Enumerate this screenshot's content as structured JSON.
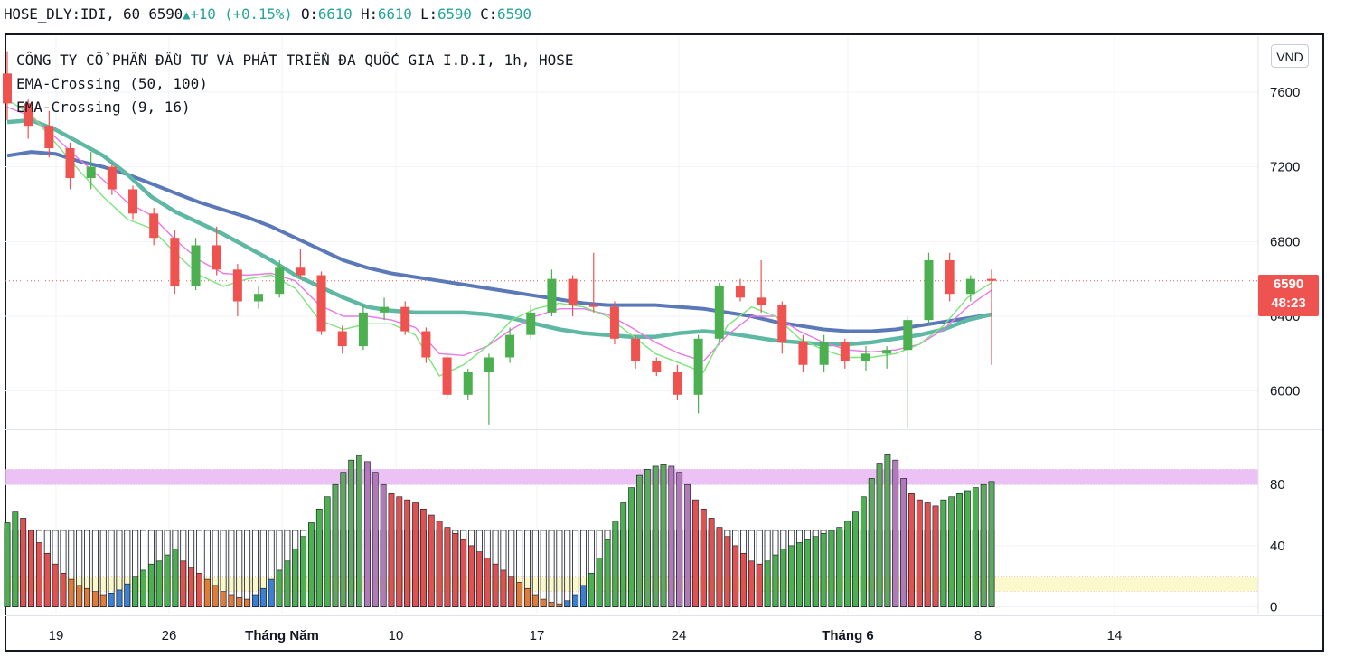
{
  "header": {
    "symbol": "HOSE_DLY:IDI, 60",
    "last": "6590",
    "arrow": "▲",
    "change": "+10",
    "change_pct": "(+0.15%)",
    "o_label": "O:",
    "o_value": "6610",
    "h_label": "H:",
    "h_value": "6610",
    "l_label": "L:",
    "l_value": "6590",
    "c_label": "C:",
    "c_value": "6590"
  },
  "legend": {
    "title": "CÔNG TY CỔ PHẦN ĐẦU TƯ VÀ PHÁT TRIỂN ĐA QUỐC GIA I.D.I, 1h, HOSE",
    "line2": "EMA-Crossing (50, 100)",
    "line3": "EMA-Crossing (9, 16)"
  },
  "unit_button": "VND",
  "price_tag": {
    "price": "6590",
    "countdown": "48:23"
  },
  "colors": {
    "up": "#26a69a",
    "candle_up": "#4caf50",
    "candle_down": "#ef5350",
    "ema50": "#5fb8a3",
    "ema100": "#5b79b8",
    "ema9": "#7de37d",
    "ema16": "#e879e8",
    "osc_over_band": "#e9b8f5",
    "osc_under_band": "#fbf7c4"
  },
  "chart_data": [
    {
      "type": "line",
      "subtype": "candlestick",
      "y_ticks": [
        "7600",
        "7200",
        "6800",
        "6400",
        "6000"
      ],
      "ylim": [
        5800,
        7900
      ],
      "x_ticks": [
        "19",
        "26",
        "Tháng Năm",
        "10",
        "17",
        "24",
        "Tháng 6",
        "8",
        "14"
      ],
      "last_price": 6590,
      "series": [
        {
          "name": "EMA-Crossing (50, 100)",
          "lines": [
            {
              "id": "ema50",
              "values": [
                7440,
                7450,
                7400,
                7330,
                7260,
                7160,
                7040,
                6960,
                6900,
                6840,
                6770,
                6700,
                6620,
                6560,
                6500,
                6450,
                6430,
                6420,
                6420,
                6420,
                6410,
                6390,
                6360,
                6330,
                6310,
                6300,
                6290,
                6290,
                6310,
                6320,
                6310,
                6290,
                6270,
                6260,
                6250,
                6250,
                6260,
                6280,
                6300,
                6330,
                6380,
                6410
              ]
            },
            {
              "id": "ema100",
              "values": [
                7260,
                7280,
                7270,
                7230,
                7200,
                7160,
                7110,
                7060,
                7010,
                6970,
                6930,
                6880,
                6820,
                6760,
                6700,
                6660,
                6630,
                6610,
                6590,
                6570,
                6550,
                6530,
                6510,
                6490,
                6470,
                6460,
                6460,
                6460,
                6450,
                6440,
                6420,
                6400,
                6370,
                6350,
                6330,
                6320,
                6320,
                6330,
                6350,
                6370,
                6390,
                6410
              ]
            }
          ]
        },
        {
          "name": "EMA-Crossing (9, 16)",
          "lines": [
            {
              "id": "ema9",
              "values": [
                7560,
                7480,
                7330,
                7180,
                7040,
                6920,
                6870,
                6740,
                6620,
                6560,
                6600,
                6620,
                6550,
                6380,
                6330,
                6360,
                6360,
                6300,
                6080,
                6140,
                6240,
                6380,
                6440,
                6470,
                6450,
                6400,
                6300,
                6200,
                6150,
                6100,
                6350,
                6450,
                6400,
                6280,
                6220,
                6180,
                6180,
                6200,
                6250,
                6350,
                6500,
                6580
              ]
            },
            {
              "id": "ema16",
              "values": [
                7520,
                7470,
                7360,
                7240,
                7130,
                7010,
                6940,
                6810,
                6700,
                6630,
                6620,
                6630,
                6590,
                6460,
                6400,
                6400,
                6380,
                6340,
                6200,
                6190,
                6240,
                6330,
                6400,
                6440,
                6440,
                6410,
                6340,
                6260,
                6200,
                6160,
                6300,
                6400,
                6400,
                6320,
                6260,
                6220,
                6210,
                6220,
                6250,
                6330,
                6450,
                6540
              ]
            }
          ]
        }
      ],
      "candles": [
        [
          7700,
          7820,
          7450,
          7540
        ],
        [
          7540,
          7560,
          7350,
          7420
        ],
        [
          7420,
          7500,
          7250,
          7300
        ],
        [
          7300,
          7330,
          7080,
          7140
        ],
        [
          7140,
          7280,
          7080,
          7200
        ],
        [
          7200,
          7220,
          7050,
          7080
        ],
        [
          7080,
          7100,
          6920,
          6950
        ],
        [
          6950,
          6980,
          6780,
          6820
        ],
        [
          6820,
          6860,
          6520,
          6560
        ],
        [
          6560,
          6820,
          6540,
          6780
        ],
        [
          6780,
          6880,
          6620,
          6650
        ],
        [
          6650,
          6680,
          6400,
          6480
        ],
        [
          6480,
          6560,
          6440,
          6520
        ],
        [
          6520,
          6700,
          6500,
          6660
        ],
        [
          6660,
          6760,
          6600,
          6620
        ],
        [
          6620,
          6640,
          6300,
          6320
        ],
        [
          6320,
          6350,
          6200,
          6240
        ],
        [
          6240,
          6460,
          6220,
          6420
        ],
        [
          6420,
          6500,
          6380,
          6450
        ],
        [
          6450,
          6480,
          6300,
          6320
        ],
        [
          6320,
          6340,
          6150,
          6180
        ],
        [
          6180,
          6200,
          5960,
          5980
        ],
        [
          5980,
          6120,
          5950,
          6100
        ],
        [
          6100,
          6200,
          5820,
          6180
        ],
        [
          6180,
          6340,
          6150,
          6300
        ],
        [
          6300,
          6460,
          6280,
          6420
        ],
        [
          6420,
          6650,
          6400,
          6600
        ],
        [
          6600,
          6620,
          6400,
          6460
        ],
        [
          6460,
          6740,
          6420,
          6450
        ],
        [
          6450,
          6480,
          6250,
          6280
        ],
        [
          6280,
          6300,
          6120,
          6160
        ],
        [
          6160,
          6180,
          6080,
          6100
        ],
        [
          6100,
          6140,
          5950,
          5980
        ],
        [
          5980,
          6300,
          5880,
          6280
        ],
        [
          6280,
          6580,
          6260,
          6560
        ],
        [
          6560,
          6600,
          6480,
          6500
        ],
        [
          6500,
          6700,
          6420,
          6460
        ],
        [
          6460,
          6480,
          6200,
          6260
        ],
        [
          6260,
          6300,
          6100,
          6140
        ],
        [
          6140,
          6300,
          6100,
          6260
        ],
        [
          6260,
          6280,
          6120,
          6160
        ],
        [
          6160,
          6240,
          6110,
          6200
        ],
        [
          6200,
          6240,
          6120,
          6220
        ],
        [
          6220,
          6400,
          5800,
          6380
        ],
        [
          6380,
          6740,
          6360,
          6700
        ],
        [
          6700,
          6740,
          6480,
          6520
        ],
        [
          6520,
          6620,
          6480,
          6600
        ],
        [
          6600,
          6650,
          6140,
          6590
        ]
      ]
    },
    {
      "type": "bar",
      "subtype": "oscillator",
      "y_ticks": [
        "80",
        "40",
        "0"
      ],
      "ylim": [
        -5,
        115
      ],
      "bands": [
        [
          80,
          90
        ],
        [
          10,
          20
        ]
      ],
      "values": [
        55,
        62,
        58,
        50,
        42,
        35,
        28,
        22,
        18,
        14,
        12,
        10,
        8,
        9,
        11,
        15,
        20,
        24,
        28,
        30,
        34,
        38,
        30,
        26,
        22,
        18,
        14,
        10,
        8,
        6,
        5,
        8,
        12,
        18,
        24,
        30,
        38,
        46,
        55,
        64,
        72,
        80,
        88,
        96,
        99,
        95,
        88,
        80,
        74,
        72,
        70,
        68,
        64,
        60,
        56,
        52,
        48,
        44,
        40,
        36,
        32,
        28,
        24,
        20,
        16,
        12,
        8,
        5,
        3,
        2,
        4,
        8,
        14,
        22,
        32,
        44,
        56,
        68,
        78,
        86,
        90,
        92,
        93,
        92,
        88,
        80,
        70,
        64,
        58,
        52,
        46,
        40,
        35,
        30,
        28,
        30,
        34,
        38,
        40,
        42,
        44,
        46,
        48,
        50,
        52,
        56,
        62,
        72,
        84,
        94,
        100,
        96,
        84,
        74,
        70,
        68,
        66,
        70,
        72,
        74,
        76,
        78,
        80,
        82
      ]
    }
  ]
}
